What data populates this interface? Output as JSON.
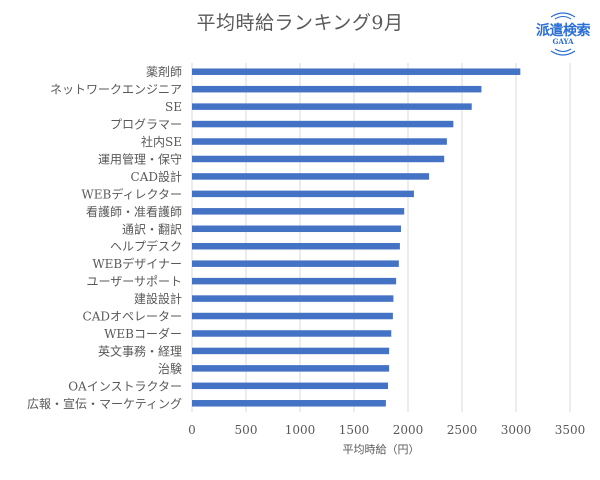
{
  "logo": {
    "text": "派遣検索",
    "sub": "GAYA",
    "color": "#2a6fd6"
  },
  "chart_data": {
    "type": "bar",
    "orientation": "horizontal",
    "title": "平均時給ランキング9月",
    "xlabel": "平均時給（円）",
    "ylabel": "",
    "xlim": [
      0,
      3500
    ],
    "xticks": [
      0,
      500,
      1000,
      1500,
      2000,
      2500,
      3000,
      3500
    ],
    "grid": true,
    "legend": "none",
    "bar_color": "#4472C4",
    "categories": [
      "薬剤師",
      "ネットワークエンジニア",
      "SE",
      "プログラマー",
      "社内SE",
      "運用管理・保守",
      "CAD設計",
      "WEBディレクター",
      "看護師・准看護師",
      "通訳・翻訳",
      "ヘルプデスク",
      "WEBデザイナー",
      "ユーザーサポート",
      "建設設計",
      "CADオペレーター",
      "WEBコーダー",
      "英文事務・経理",
      "治験",
      "OAインストラクター",
      "広報・宣伝・マーケティング"
    ],
    "values": [
      3040,
      2680,
      2590,
      2420,
      2360,
      2335,
      2195,
      2055,
      1965,
      1935,
      1925,
      1915,
      1890,
      1865,
      1860,
      1845,
      1825,
      1825,
      1815,
      1795
    ]
  }
}
